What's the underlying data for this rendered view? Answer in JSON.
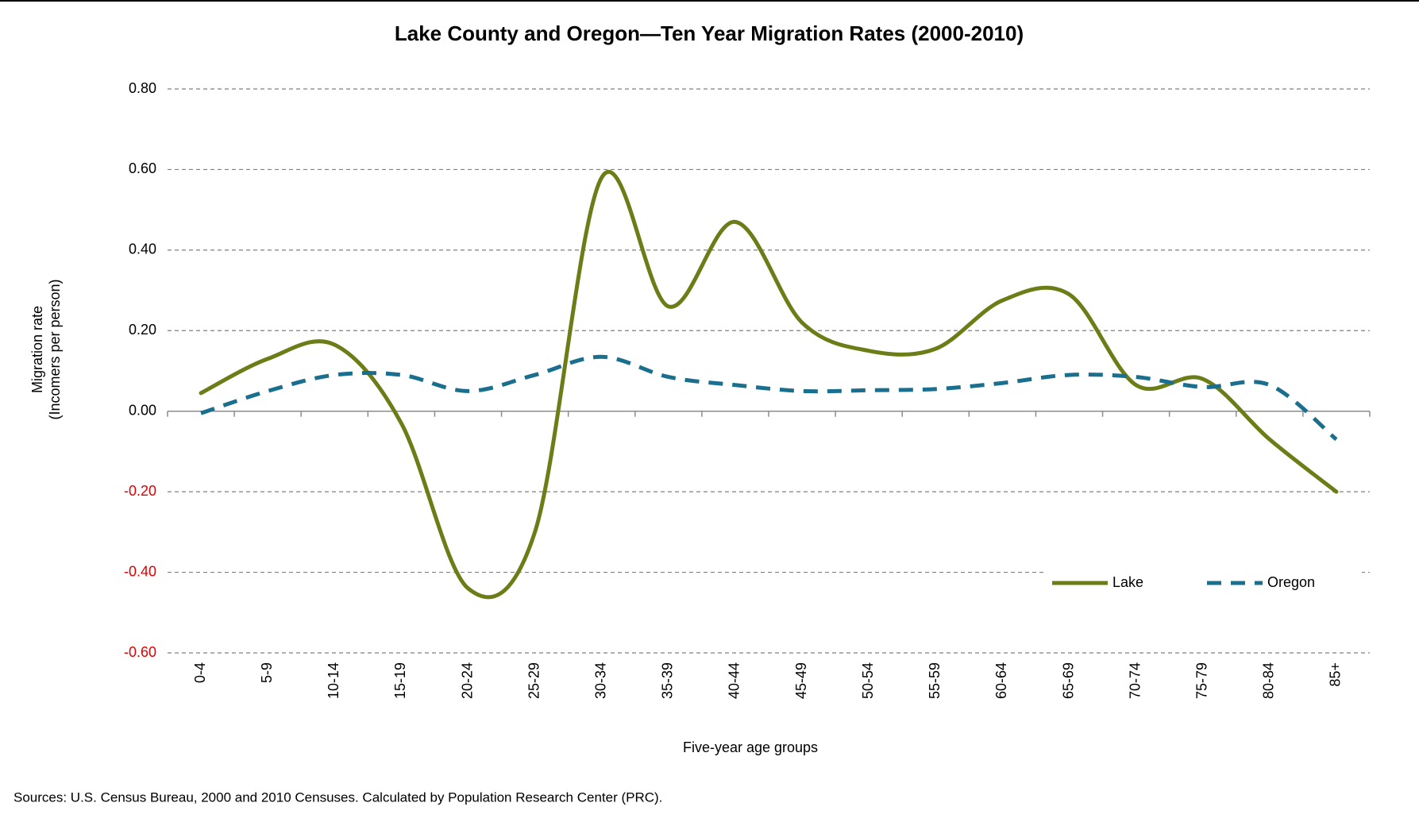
{
  "chart_data": {
    "type": "line",
    "title": "Lake County and Oregon—Ten Year Migration Rates (2000-2010)",
    "x_label": "Five-year age groups",
    "y_label": [
      "Migration rate",
      "(Incomers per person)"
    ],
    "source": "Sources: U.S. Census Bureau, 2000 and 2010 Censuses. Calculated by Population Research Center (PRC).",
    "categories": [
      "0-4",
      "5-9",
      "10-14",
      "15-19",
      "20-24",
      "25-29",
      "30-34",
      "35-39",
      "40-44",
      "45-49",
      "50-54",
      "55-59",
      "60-64",
      "65-69",
      "70-74",
      "75-79",
      "80-84",
      "85+"
    ],
    "series": [
      {
        "name": "Lake",
        "color": "#6b7d16",
        "dashed": false,
        "values": [
          0.045,
          0.13,
          0.165,
          -0.03,
          -0.44,
          -0.3,
          0.58,
          0.26,
          0.47,
          0.22,
          0.15,
          0.155,
          0.275,
          0.29,
          0.065,
          0.08,
          -0.07,
          -0.2
        ]
      },
      {
        "name": "Oregon",
        "color": "#1b6f8e",
        "dashed": true,
        "values": [
          -0.005,
          0.05,
          0.09,
          0.09,
          0.05,
          0.09,
          0.135,
          0.085,
          0.065,
          0.05,
          0.052,
          0.055,
          0.07,
          0.09,
          0.085,
          0.06,
          0.065,
          -0.07
        ]
      }
    ],
    "ylim": [
      -0.6,
      0.8
    ],
    "yticks": [
      {
        "value": -0.6,
        "label": "-0.60"
      },
      {
        "value": -0.4,
        "label": "-0.40"
      },
      {
        "value": -0.2,
        "label": "-0.20"
      },
      {
        "value": 0,
        "label": "0.00"
      },
      {
        "value": 0.2,
        "label": "0.20"
      },
      {
        "value": 0.4,
        "label": "0.40"
      },
      {
        "value": 0.6,
        "label": "0.60"
      },
      {
        "value": 0.8,
        "label": "0.80"
      }
    ],
    "negative_tick_color": "#e00000",
    "grid": true,
    "smooth": true,
    "legend": "lower right"
  }
}
